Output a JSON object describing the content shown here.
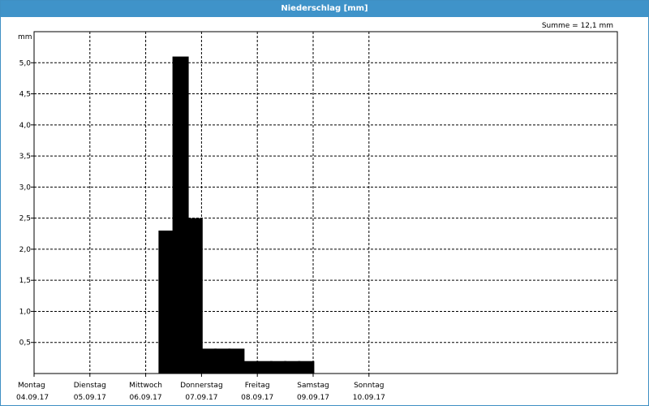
{
  "window": {
    "title": "Niederschlag [mm]"
  },
  "summary": "Summe = 12,1 mm",
  "chart_data": {
    "type": "bar",
    "title": "Niederschlag [mm]",
    "ylabel": "mm",
    "ylim": [
      0,
      5.5
    ],
    "yticks": [
      0.5,
      1.0,
      1.5,
      2.0,
      2.5,
      3.0,
      3.5,
      4.0,
      4.5,
      5.0
    ],
    "ytick_labels": [
      "0,5",
      "1,0",
      "1,5",
      "2,0",
      "2,5",
      "3,0",
      "3,5",
      "4,0",
      "4,5",
      "5,0"
    ],
    "grid": true,
    "x_unit_hours": 6,
    "x_range_slots": [
      0,
      28
    ],
    "days": [
      {
        "weekday": "Montag",
        "date": "04.09.17"
      },
      {
        "weekday": "Dienstag",
        "date": "05.09.17"
      },
      {
        "weekday": "Mittwoch",
        "date": "06.09.17"
      },
      {
        "weekday": "Donnerstag",
        "date": "07.09.17"
      },
      {
        "weekday": "Freitag",
        "date": "08.09.17"
      },
      {
        "weekday": "Samstag",
        "date": "09.09.17"
      },
      {
        "weekday": "Sonntag",
        "date": "10.09.17"
      }
    ],
    "series": [
      {
        "values": [
          0,
          0,
          0,
          0,
          0,
          0,
          0,
          0,
          0,
          2.3,
          5.1,
          2.5,
          0.4,
          0.4,
          0.4,
          0.2,
          0.2,
          0.2,
          0.2,
          0.2,
          0,
          0,
          0,
          0,
          0,
          0,
          0,
          0
        ]
      }
    ]
  }
}
